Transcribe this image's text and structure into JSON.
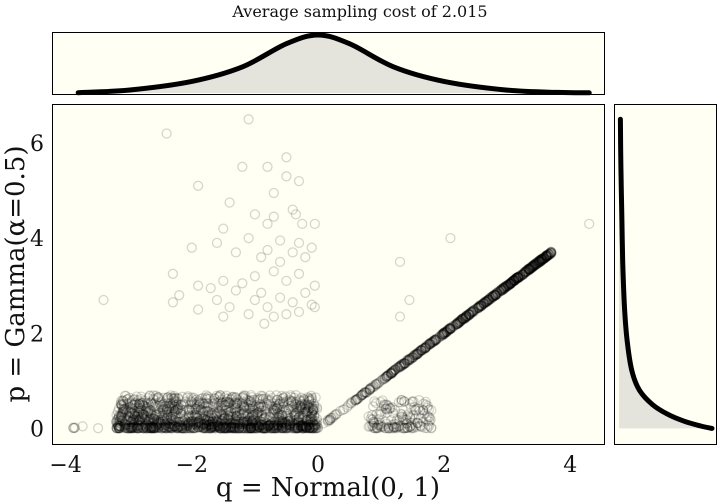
{
  "chart_data": {
    "type": "scatter",
    "title": "Average sampling cost of 2.015",
    "xlabel": "q = Normal(0, 1)",
    "ylabel": "p = Gamma(α=0.5)",
    "xlim": [
      -4.2,
      4.55
    ],
    "ylim": [
      -0.35,
      6.8
    ],
    "xticks": [
      -4,
      -2,
      0,
      2,
      4
    ],
    "yticks": [
      0,
      2,
      4,
      6
    ],
    "xtick_labels": [
      "−4",
      "−2",
      "0",
      "2",
      "4"
    ],
    "ytick_labels": [
      "0",
      "2",
      "4",
      "6"
    ],
    "grid": false,
    "marker": "hollow-circle",
    "colors": {
      "panel": "#fffff3",
      "marker": "#000000",
      "kde_fill": "#e4e4dc",
      "kde_line": "#000000"
    },
    "series": [
      {
        "points": [
          [
            -2.4,
            6.2
          ],
          [
            -1.1,
            6.5
          ],
          [
            -0.5,
            5.7
          ],
          [
            -0.8,
            5.5
          ],
          [
            -1.2,
            5.5
          ],
          [
            -0.5,
            5.3
          ],
          [
            -0.3,
            5.2
          ],
          [
            -1.9,
            5.1
          ],
          [
            -0.7,
            4.95
          ],
          [
            -1.4,
            4.75
          ],
          [
            -0.4,
            4.6
          ],
          [
            -1.0,
            4.5
          ],
          [
            -0.7,
            4.45
          ],
          [
            -0.35,
            4.5
          ],
          [
            -0.8,
            4.3
          ],
          [
            -1.5,
            4.2
          ],
          [
            -0.05,
            4.3
          ],
          [
            -0.25,
            4.3
          ],
          [
            2.1,
            4.0
          ],
          [
            4.3,
            4.3
          ],
          [
            -1.6,
            3.9
          ],
          [
            -1.1,
            4.0
          ],
          [
            -0.6,
            3.95
          ],
          [
            -0.3,
            3.9
          ],
          [
            -0.8,
            3.75
          ],
          [
            -2.0,
            3.8
          ],
          [
            -0.1,
            3.8
          ],
          [
            -0.4,
            3.7
          ],
          [
            -0.9,
            3.6
          ],
          [
            -1.3,
            3.7
          ],
          [
            -0.6,
            3.5
          ],
          [
            -0.2,
            3.6
          ],
          [
            1.3,
            3.5
          ],
          [
            -2.3,
            3.25
          ],
          [
            -0.7,
            3.3
          ],
          [
            -1.0,
            3.2
          ],
          [
            -1.5,
            3.1
          ],
          [
            -0.3,
            3.25
          ],
          [
            -1.2,
            3.05
          ],
          [
            -0.05,
            3.0
          ],
          [
            -1.9,
            3.0
          ],
          [
            -0.5,
            3.1
          ],
          [
            -1.7,
            2.95
          ],
          [
            -0.9,
            2.85
          ],
          [
            -1.3,
            2.9
          ],
          [
            -0.2,
            2.85
          ],
          [
            -2.2,
            2.8
          ],
          [
            -0.6,
            2.75
          ],
          [
            -1.0,
            2.7
          ],
          [
            -1.6,
            2.7
          ],
          [
            -0.4,
            2.65
          ],
          [
            -0.1,
            2.6
          ],
          [
            -0.8,
            2.55
          ],
          [
            -1.4,
            2.55
          ],
          [
            -3.4,
            2.7
          ],
          [
            -2.3,
            2.65
          ],
          [
            -1.9,
            2.5
          ],
          [
            -0.3,
            2.45
          ],
          [
            -1.1,
            2.4
          ],
          [
            -0.7,
            2.35
          ],
          [
            -1.5,
            2.35
          ],
          [
            1.45,
            2.7
          ],
          [
            1.3,
            2.35
          ],
          [
            -0.85,
            2.2
          ],
          [
            -0.5,
            2.4
          ],
          [
            -0.05,
            2.55
          ]
        ],
        "bands": [
          {
            "x_range": [
              -3.2,
              0.0
            ],
            "y_range": [
              0.0,
              0.7
            ],
            "n": 1600
          },
          {
            "x_range": [
              0.8,
              1.8
            ],
            "y_range": [
              0.0,
              0.6
            ],
            "n": 160
          },
          {
            "x_range": [
              0.0,
              3.7
            ],
            "y_formula": "y = x",
            "n": 700
          },
          {
            "x_range": [
              -3.9,
              0.0
            ],
            "y_range": [
              0.0,
              0.1
            ],
            "n": 40
          }
        ]
      }
    ],
    "marginal_x": {
      "x": [
        -3.8,
        -3.0,
        -2.0,
        -1.2,
        -0.5,
        0.0,
        0.5,
        1.2,
        2.0,
        3.0,
        3.8,
        4.3
      ],
      "density": [
        0.006,
        0.05,
        0.2,
        0.45,
        0.85,
        1.0,
        0.85,
        0.45,
        0.2,
        0.05,
        0.01,
        0.004
      ]
    },
    "marginal_y": {
      "y": [
        0.0,
        0.05,
        0.15,
        0.3,
        0.5,
        0.8,
        1.2,
        1.8,
        2.5,
        3.5,
        4.5,
        5.5,
        6.5
      ],
      "density": [
        1.0,
        0.88,
        0.7,
        0.52,
        0.36,
        0.22,
        0.14,
        0.09,
        0.06,
        0.04,
        0.03,
        0.02,
        0.015
      ]
    }
  }
}
